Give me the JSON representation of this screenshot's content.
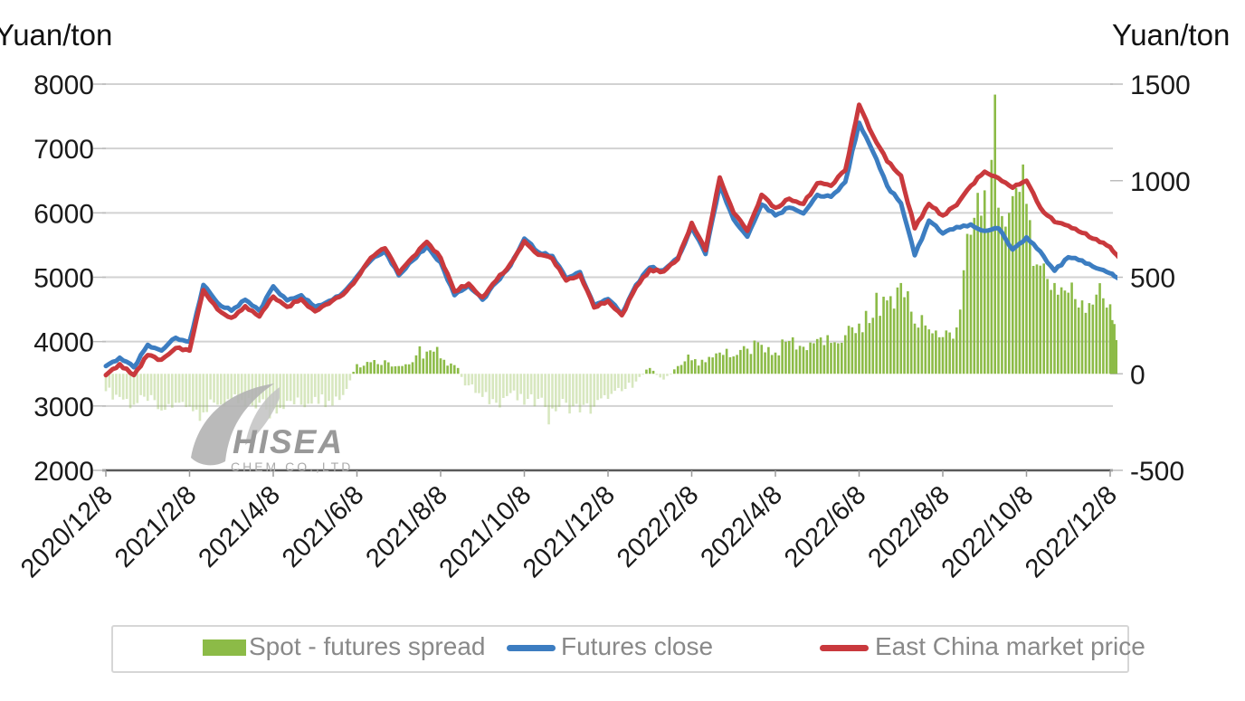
{
  "colors": {
    "background": "#ffffff",
    "gridline": "#d2d2d2",
    "axis_line": "#595959",
    "tick_text": "#1a1a1a",
    "legend_text": "#898989",
    "legend_border": "#d6d6d6",
    "watermark": "#a6a6a6"
  },
  "watermark": {
    "line1": "HISEA",
    "line2": "CHEM CO.,LTD"
  },
  "chart_data": {
    "type": "mixed",
    "title": "",
    "left_axis": {
      "title": "Yuan/ton",
      "min": 2000,
      "max": 8000,
      "ticks": [
        8000,
        7000,
        6000,
        5000,
        4000,
        3000,
        2000
      ]
    },
    "right_axis": {
      "title": "Yuan/ton",
      "min": -500,
      "max": 1500,
      "ticks": [
        1500,
        1000,
        500,
        0,
        -500
      ]
    },
    "x_axis": {
      "tick_labels": [
        "2020/12/8",
        "2021/2/8",
        "2021/4/8",
        "2021/6/8",
        "2021/8/8",
        "2021/10/8",
        "2021/12/8",
        "2022/2/8",
        "2022/4/8",
        "2022/6/8",
        "2022/8/8",
        "2022/10/8",
        "2022/12/8"
      ],
      "months_per_tick": 2,
      "rotation_deg": -45
    },
    "x_months": [
      0,
      0.33,
      0.67,
      1,
      1.33,
      1.67,
      2,
      2.33,
      2.67,
      3,
      3.33,
      3.67,
      4,
      4.33,
      4.67,
      5,
      5.33,
      5.67,
      6,
      6.33,
      6.67,
      7,
      7.33,
      7.67,
      8,
      8.33,
      8.67,
      9,
      9.33,
      9.67,
      10,
      10.33,
      10.67,
      11,
      11.33,
      11.67,
      12,
      12.33,
      12.67,
      13,
      13.33,
      13.67,
      14,
      14.33,
      14.67,
      15,
      15.33,
      15.67,
      16,
      16.33,
      16.67,
      17,
      17.33,
      17.67,
      18,
      18.33,
      18.67,
      19,
      19.33,
      19.67,
      20,
      20.33,
      20.67,
      21,
      21.33,
      21.67,
      22,
      22.33,
      22.67,
      23,
      23.33,
      23.67,
      24,
      24.2
    ],
    "series": [
      {
        "name": "Spot - futures spread",
        "type": "bar",
        "axis": "right",
        "color": "#8cbb47",
        "negative_opacity": 0.35,
        "values": [
          -90,
          -120,
          -160,
          -140,
          -190,
          -150,
          -170,
          -200,
          -160,
          -130,
          -170,
          -150,
          -180,
          -140,
          -160,
          -120,
          -140,
          -110,
          50,
          60,
          70,
          40,
          60,
          115,
          80,
          45,
          -60,
          -120,
          -150,
          -100,
          -160,
          -130,
          -180,
          -150,
          -200,
          -170,
          -130,
          -90,
          -40,
          30,
          -30,
          40,
          70,
          60,
          110,
          90,
          130,
          150,
          110,
          170,
          140,
          180,
          160,
          200,
          260,
          290,
          380,
          470,
          260,
          230,
          190,
          240,
          720,
          950,
          860,
          920,
          880,
          560,
          470,
          420,
          380,
          410,
          360,
          110
        ]
      },
      {
        "name": "Futures close",
        "type": "line",
        "axis": "left",
        "color": "#3c7dc1",
        "values": [
          3620,
          3750,
          3600,
          3950,
          3860,
          4060,
          4000,
          4880,
          4600,
          4480,
          4650,
          4480,
          4860,
          4640,
          4720,
          4540,
          4630,
          4760,
          5010,
          5260,
          5400,
          5030,
          5260,
          5480,
          5230,
          4720,
          4870,
          4650,
          4920,
          5180,
          5600,
          5390,
          5330,
          4980,
          5080,
          4560,
          4660,
          4430,
          4880,
          5150,
          5110,
          5300,
          5780,
          5360,
          6430,
          5900,
          5630,
          6130,
          5960,
          6080,
          5990,
          6280,
          6250,
          6480,
          7400,
          6950,
          6420,
          6150,
          5340,
          5880,
          5680,
          5780,
          5820,
          5720,
          5760,
          5430,
          5620,
          5400,
          5100,
          5310,
          5260,
          5140,
          5060,
          4960
        ]
      },
      {
        "name": "East China market price",
        "type": "line",
        "axis": "left",
        "color": "#c9393d",
        "values": [
          3480,
          3650,
          3480,
          3790,
          3720,
          3900,
          3860,
          4800,
          4500,
          4370,
          4550,
          4390,
          4700,
          4540,
          4660,
          4470,
          4590,
          4730,
          4980,
          5300,
          5450,
          5060,
          5310,
          5550,
          5300,
          4780,
          4900,
          4690,
          4950,
          5210,
          5560,
          5350,
          5290,
          4950,
          5040,
          4530,
          4630,
          4410,
          4850,
          5120,
          5090,
          5280,
          5845,
          5420,
          6550,
          6000,
          5720,
          6280,
          6080,
          6220,
          6140,
          6460,
          6420,
          6660,
          7680,
          7200,
          6800,
          6580,
          5760,
          6140,
          5960,
          6120,
          6420,
          6640,
          6540,
          6390,
          6500,
          6080,
          5860,
          5800,
          5690,
          5590,
          5470,
          5310
        ]
      }
    ],
    "legend_position": "bottom"
  }
}
